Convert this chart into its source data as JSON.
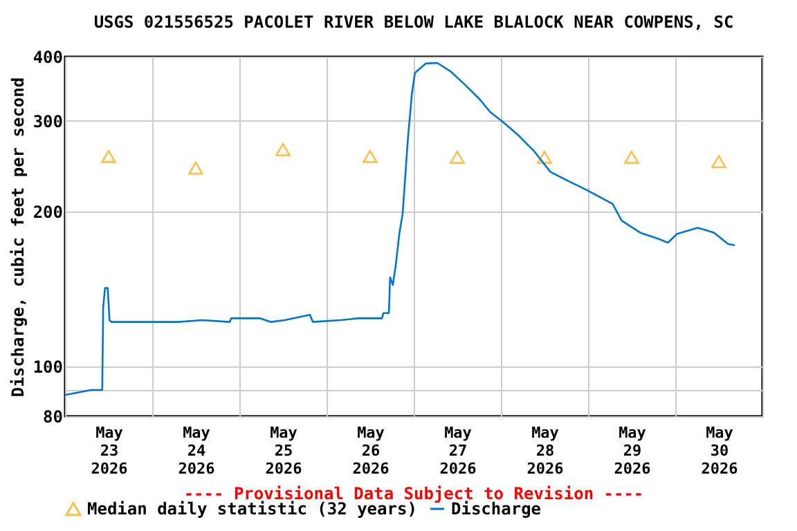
{
  "chart_data": {
    "type": "line",
    "title": "USGS 021556525 PACOLET RIVER BELOW LAKE BLALOCK NEAR COWPENS, SC",
    "ylabel": "Discharge, cubic feet per second",
    "annotations": [
      "---- Provisional Data Subject to Revision ----"
    ],
    "log": "y",
    "grid": true,
    "legend": "bottom",
    "xlim": [
      "2026-05-23T00:00",
      "2026-05-31T00:00"
    ],
    "xticks": [
      {
        "value": "2026-05-23T00:00",
        "label": null
      },
      {
        "value": "2026-05-23T12:00",
        "label": "May\n23\n2026"
      },
      {
        "value": "2026-05-24T00:00",
        "label": null
      },
      {
        "value": "2026-05-24T12:00",
        "label": "May\n24\n2026"
      },
      {
        "value": "2026-05-25T00:00",
        "label": null
      },
      {
        "value": "2026-05-25T12:00",
        "label": "May\n25\n2026"
      },
      {
        "value": "2026-05-26T00:00",
        "label": null
      },
      {
        "value": "2026-05-26T12:00",
        "label": "May\n26\n2026"
      },
      {
        "value": "2026-05-27T00:00",
        "label": null
      },
      {
        "value": "2026-05-27T12:00",
        "label": "May\n27\n2026"
      },
      {
        "value": "2026-05-28T00:00",
        "label": null
      },
      {
        "value": "2026-05-28T12:00",
        "label": "May\n28\n2026"
      },
      {
        "value": "2026-05-29T00:00",
        "label": null
      },
      {
        "value": "2026-05-29T12:00",
        "label": "May\n29\n2026"
      },
      {
        "value": "2026-05-30T00:00",
        "label": null
      },
      {
        "value": "2026-05-30T12:00",
        "label": "May\n30\n2026"
      },
      {
        "value": "2026-05-31T00:00",
        "label": null
      }
    ],
    "ylim": [
      80,
      400
    ],
    "yticks": [
      80,
      {
        "value": 90,
        "label": null
      },
      100,
      200,
      300,
      400
    ],
    "series": [
      {
        "name": "Median daily statistic (32 years)",
        "type": "scatter",
        "marker": "triangle",
        "color": "#ffa500",
        "x": [
          "2026-05-23T12:00",
          "2026-05-24T12:00",
          "2026-05-25T12:00",
          "2026-05-26T12:00",
          "2026-05-27T12:00",
          "2026-05-28T12:00",
          "2026-05-29T12:00",
          "2026-05-30T12:00"
        ],
        "values": [
          256,
          243,
          264,
          256,
          255,
          255,
          255,
          250
        ]
      },
      {
        "name": "Discharge",
        "color": "#0077cc",
        "marker": "none",
        "line_style": "solid",
        "x": [
          "2026-05-23T00:00",
          "2026-05-23T07:15",
          "2026-05-23T10:15",
          "2026-05-23T10:30",
          "2026-05-23T11:00",
          "2026-05-23T11:45",
          "2026-05-23T12:15",
          "2026-05-23T12:45",
          "2026-05-24T07:15",
          "2026-05-24T13:45",
          "2026-05-24T21:20",
          "2026-05-24T21:45",
          "2026-05-25T05:45",
          "2026-05-25T08:45",
          "2026-05-25T12:30",
          "2026-05-25T19:25",
          "2026-05-25T20:15",
          "2026-05-26T03:50",
          "2026-05-26T08:45",
          "2026-05-26T15:15",
          "2026-05-26T15:40",
          "2026-05-26T17:10",
          "2026-05-26T17:30",
          "2026-05-26T18:15",
          "2026-05-26T19:05",
          "2026-05-26T20:05",
          "2026-05-26T20:57",
          "2026-05-26T21:35",
          "2026-05-26T22:12",
          "2026-05-26T22:30",
          "2026-05-26T23:30",
          "2026-05-27T00:20",
          "2026-05-27T03:20",
          "2026-05-27T06:30",
          "2026-05-27T10:15",
          "2026-05-27T14:05",
          "2026-05-27T17:55",
          "2026-05-27T21:05",
          "2026-05-28T00:15",
          "2026-05-28T04:40",
          "2026-05-28T09:10",
          "2026-05-28T13:35",
          "2026-05-28T18:40",
          "2026-05-28T23:45",
          "2026-05-29T06:45",
          "2026-05-29T09:15",
          "2026-05-29T14:20",
          "2026-05-29T19:25",
          "2026-05-29T22:00",
          "2026-05-30T00:30",
          "2026-05-30T06:10",
          "2026-05-30T10:40",
          "2026-05-30T14:30",
          "2026-05-30T16:25"
        ],
        "values": [
          88,
          90,
          90,
          130,
          142,
          142,
          123,
          122,
          122,
          123,
          122,
          124,
          124,
          122,
          123,
          126,
          122,
          123,
          124,
          124,
          127,
          127,
          149,
          144,
          158,
          182,
          198,
          229,
          265,
          282,
          339,
          372,
          388,
          389,
          374,
          353,
          332,
          312,
          300,
          282,
          262,
          239,
          229,
          220,
          207,
          192,
          182,
          177,
          174,
          181,
          186,
          182,
          173,
          172
        ]
      }
    ]
  }
}
